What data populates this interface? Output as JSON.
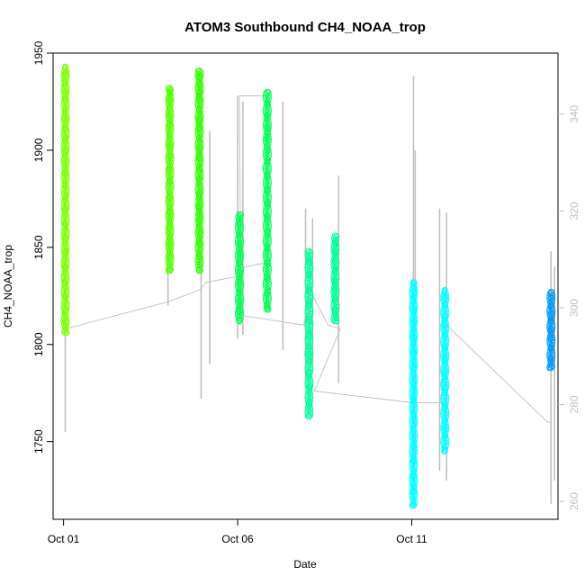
{
  "chart_data": {
    "type": "scatter",
    "title": "ATOM3 Southbound CH4_NOAA_trop",
    "xlabel": "Date",
    "ylabel": "CH4_NOAA_trop",
    "x_ticks": [
      "Oct 01",
      "Oct 06",
      "Oct 11"
    ],
    "x_tick_days": [
      0,
      5,
      10
    ],
    "xlim": [
      -0.3,
      14.2
    ],
    "ylim": [
      1710,
      1950
    ],
    "y_ticks": [
      1750,
      1800,
      1850,
      1900,
      1950
    ],
    "y2_ticks": [
      260,
      280,
      300,
      320,
      340
    ],
    "y2lim": [
      256.3,
      352.6
    ],
    "marker": "open-circle",
    "grid": false,
    "legend": "none",
    "colors": {
      "secondary_series": "#c0c0c0"
    },
    "series": [
      {
        "day": 0.05,
        "ymin": 1806,
        "ymax": 1943,
        "color": "#7fff00",
        "values": [
          1806,
          1812,
          1818,
          1825,
          1832,
          1840,
          1848,
          1855,
          1862,
          1870,
          1876,
          1882,
          1888,
          1894,
          1900,
          1906,
          1911,
          1916,
          1920,
          1926,
          1930,
          1935,
          1939,
          1943
        ]
      },
      {
        "day": 3.05,
        "ymin": 1838,
        "ymax": 1932,
        "color": "#55ff00",
        "values": [
          1838,
          1845,
          1852,
          1860,
          1868,
          1876,
          1884,
          1890,
          1897,
          1903,
          1908,
          1913,
          1918,
          1922,
          1926,
          1930,
          1932
        ]
      },
      {
        "day": 3.9,
        "ymin": 1838,
        "ymax": 1941,
        "color": "#33ff00",
        "values": [
          1838,
          1845,
          1852,
          1858,
          1864,
          1871,
          1878,
          1885,
          1890,
          1896,
          1901,
          1906,
          1911,
          1916,
          1921,
          1926,
          1930,
          1934,
          1938,
          1941
        ]
      },
      {
        "day": 5.05,
        "ymin": 1812,
        "ymax": 1867,
        "color": "#00ff55",
        "values": [
          1812,
          1817,
          1822,
          1827,
          1832,
          1837,
          1842,
          1847,
          1852,
          1857,
          1862,
          1867
        ]
      },
      {
        "day": 5.85,
        "ymin": 1818,
        "ymax": 1930,
        "color": "#00ff55",
        "values": [
          1818,
          1826,
          1834,
          1842,
          1850,
          1858,
          1866,
          1873,
          1880,
          1887,
          1894,
          1900,
          1906,
          1912,
          1918,
          1924,
          1930
        ]
      },
      {
        "day": 7.05,
        "ymin": 1763,
        "ymax": 1848,
        "color": "#00ff99",
        "values": [
          1763,
          1770,
          1778,
          1786,
          1795,
          1804,
          1812,
          1820,
          1828,
          1836,
          1842,
          1848
        ]
      },
      {
        "day": 7.8,
        "ymin": 1812,
        "ymax": 1856,
        "color": "#00ff99",
        "values": [
          1812,
          1818,
          1823,
          1828,
          1833,
          1838,
          1843,
          1848,
          1852,
          1856
        ]
      },
      {
        "day": 10.05,
        "ymin": 1717,
        "ymax": 1832,
        "color": "#00ffff",
        "values": [
          1717,
          1724,
          1732,
          1740,
          1748,
          1756,
          1764,
          1772,
          1780,
          1788,
          1796,
          1804,
          1812,
          1818,
          1824,
          1828,
          1832
        ]
      },
      {
        "day": 10.95,
        "ymin": 1745,
        "ymax": 1828,
        "color": "#00ffff",
        "values": [
          1745,
          1757,
          1768,
          1778,
          1786,
          1793,
          1799,
          1805,
          1810,
          1815,
          1820,
          1824,
          1828
        ]
      },
      {
        "day": 14.0,
        "ymin": 1788,
        "ymax": 1827,
        "color": "#0099ff",
        "values": [
          1788,
          1793,
          1798,
          1803,
          1808,
          1812,
          1816,
          1820,
          1824,
          1827
        ]
      }
    ],
    "secondary_series": {
      "name": "",
      "color": "#c0c0c0",
      "spikes": [
        {
          "day": 0.05,
          "low": 1755,
          "high": 1925
        },
        {
          "day": 3.0,
          "low": 1820,
          "high": 1930
        },
        {
          "day": 3.95,
          "low": 1772,
          "high": 1935
        },
        {
          "day": 4.2,
          "low": 1790,
          "high": 1910
        },
        {
          "day": 5.0,
          "low": 1803,
          "high": 1928
        },
        {
          "day": 5.15,
          "low": 1805,
          "high": 1925
        },
        {
          "day": 6.3,
          "low": 1797,
          "high": 1925
        },
        {
          "day": 6.95,
          "low": 1782,
          "high": 1870
        },
        {
          "day": 7.15,
          "low": 1790,
          "high": 1865
        },
        {
          "day": 7.9,
          "low": 1780,
          "high": 1887
        },
        {
          "day": 10.05,
          "low": 1720,
          "high": 1938
        },
        {
          "day": 10.1,
          "low": 1740,
          "high": 1900
        },
        {
          "day": 10.8,
          "low": 1735,
          "high": 1870
        },
        {
          "day": 11.0,
          "low": 1730,
          "high": 1868
        },
        {
          "day": 14.0,
          "low": 1718,
          "high": 1848
        },
        {
          "day": 14.1,
          "low": 1730,
          "high": 1840
        }
      ],
      "path": [
        [
          0.05,
          1808
        ],
        [
          3.0,
          1822
        ],
        [
          3.9,
          1828
        ],
        [
          4.1,
          1832
        ],
        [
          5.0,
          1835
        ],
        [
          5.2,
          1840
        ],
        [
          5.8,
          1842
        ],
        [
          5.85,
          1928
        ],
        [
          5.05,
          1928
        ],
        [
          5.1,
          1815
        ],
        [
          6.9,
          1810
        ],
        [
          7.05,
          1829
        ],
        [
          7.6,
          1810
        ],
        [
          7.95,
          1808
        ],
        [
          7.2,
          1776
        ],
        [
          10.05,
          1770
        ],
        [
          10.85,
          1770
        ],
        [
          10.9,
          1790
        ],
        [
          10.9,
          1812
        ],
        [
          11.0,
          1810
        ],
        [
          13.9,
          1760
        ],
        [
          14.0,
          1760
        ]
      ]
    }
  }
}
